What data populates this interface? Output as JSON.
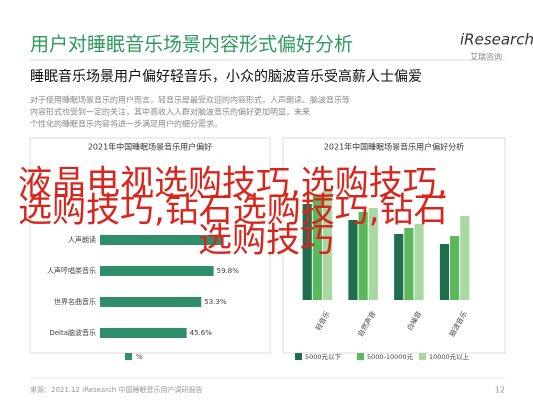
{
  "header": {
    "title": "用户对睡眠音乐场景内容形式偏好分析",
    "logo": "iResearch",
    "logo_sub": "艾瑞咨询"
  },
  "subtitle": "睡眠音乐场景用户偏好轻音乐，小众的脑波音乐受高薪人士偏爱",
  "body_lines": [
    "对于使用睡眠场景音乐的用户而言，轻音乐是最受欢迎的内容形式，人声朗读、脑波音乐等",
    "内容形式也受到一定的关注，其中高收入人群对脑波音乐的偏好更加明显，未来",
    "个性化的睡眠音乐内容将进一步满足用户的细分需求。"
  ],
  "chart_data": [
    {
      "type": "hbar",
      "title": "2021年中国睡眠场景音乐用户偏好",
      "categories": [
        "人声朗读",
        "人声哼唱类音乐",
        "世界名曲音乐",
        "Delta脑波音乐"
      ],
      "values": [
        64,
        59.8,
        53.3,
        45.6
      ],
      "value_labels": [
        null,
        "59.8%",
        "53.3%",
        "45.6%"
      ],
      "color": "#2f8f6a",
      "xlim": [
        0,
        100
      ],
      "legend": "%"
    },
    {
      "type": "grouped-bar",
      "title": "2021年中国睡眠场景音乐用户偏好分析",
      "categories": [
        "轻音乐",
        "自然声音",
        "白噪音",
        "脑波音乐"
      ],
      "ylim": [
        0,
        60
      ],
      "series": [
        {
          "name": "5000元以下",
          "color": "#1f6e4e",
          "values": [
            48,
            40,
            33,
            28
          ]
        },
        {
          "name": "5000-10000元",
          "color": "#5cb85c",
          "values": [
            52,
            44,
            36,
            32
          ]
        },
        {
          "name": "10000元以上",
          "color": "#a9d9a3",
          "values": [
            55,
            46,
            38,
            42
          ]
        }
      ]
    }
  ],
  "overlay": [
    "液晶电视选购技巧,选购技巧,",
    "选购技巧,钻石选购技巧,钻石",
    "选购技巧"
  ],
  "footer": {
    "source": "来源：2021.12 iResearch 中国睡眠音乐用户调研报告",
    "page": "12"
  }
}
